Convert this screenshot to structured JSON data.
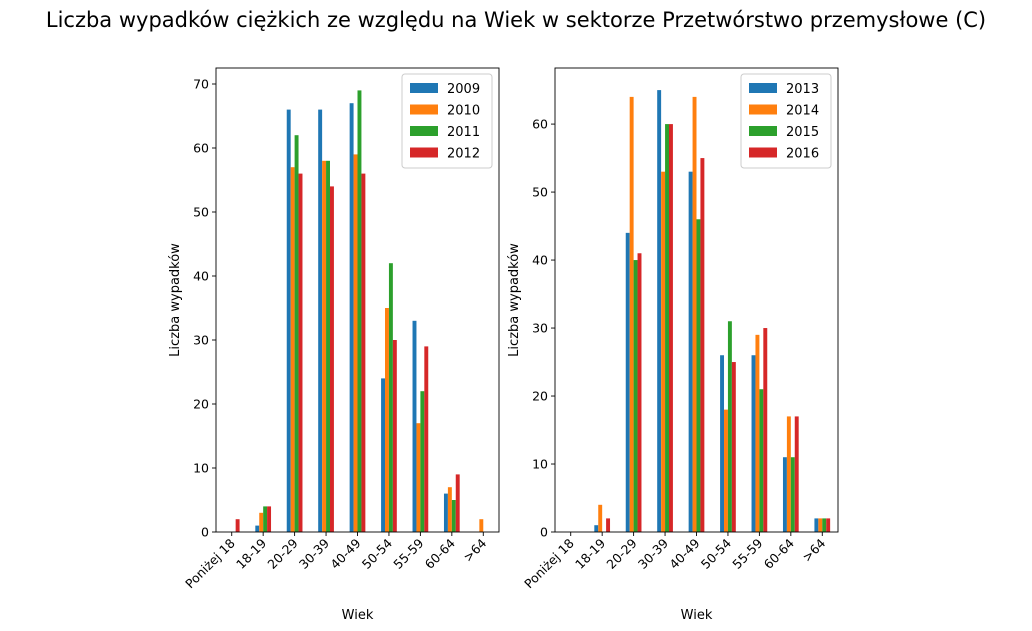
{
  "figure_title": "Liczba wypadków ciężkich ze względu na Wiek w sektorze Przetwórstwo przemysłowe (C)",
  "colors": [
    "#1f77b4",
    "#ff7f0e",
    "#2ca02c",
    "#d62728"
  ],
  "chart_data": [
    {
      "type": "bar",
      "xlabel": "Wiek",
      "ylabel": "Liczba wypadków",
      "legend_position": "top-right",
      "ylim": [
        0,
        72.5
      ],
      "yticks": [
        0,
        10,
        20,
        30,
        40,
        50,
        60,
        70
      ],
      "categories": [
        "Poniżej 18",
        "18-19",
        "20-29",
        "30-39",
        "40-49",
        "50-54",
        "55-59",
        "60-64",
        ">64"
      ],
      "series": [
        {
          "name": "2009",
          "values": [
            0,
            1,
            66,
            66,
            67,
            24,
            33,
            6,
            0
          ]
        },
        {
          "name": "2010",
          "values": [
            0,
            3,
            57,
            58,
            59,
            35,
            17,
            7,
            2
          ]
        },
        {
          "name": "2011",
          "values": [
            0,
            4,
            62,
            58,
            69,
            42,
            22,
            5,
            0
          ]
        },
        {
          "name": "2012",
          "values": [
            2,
            4,
            56,
            54,
            56,
            30,
            29,
            9,
            0
          ]
        }
      ]
    },
    {
      "type": "bar",
      "xlabel": "Wiek",
      "ylabel": "Liczba wypadków",
      "legend_position": "top-right",
      "ylim": [
        0,
        68.25
      ],
      "yticks": [
        0,
        10,
        20,
        30,
        40,
        50,
        60
      ],
      "categories": [
        "Poniżej 18",
        "18-19",
        "20-29",
        "30-39",
        "40-49",
        "50-54",
        "55-59",
        "60-64",
        ">64"
      ],
      "series": [
        {
          "name": "2013",
          "values": [
            0,
            1,
            44,
            65,
            53,
            26,
            26,
            11,
            2
          ]
        },
        {
          "name": "2014",
          "values": [
            0,
            4,
            64,
            53,
            64,
            18,
            29,
            17,
            2
          ]
        },
        {
          "name": "2015",
          "values": [
            0,
            0,
            40,
            60,
            46,
            31,
            21,
            11,
            2
          ]
        },
        {
          "name": "2016",
          "values": [
            0,
            2,
            41,
            60,
            55,
            25,
            30,
            17,
            2
          ]
        }
      ]
    }
  ]
}
